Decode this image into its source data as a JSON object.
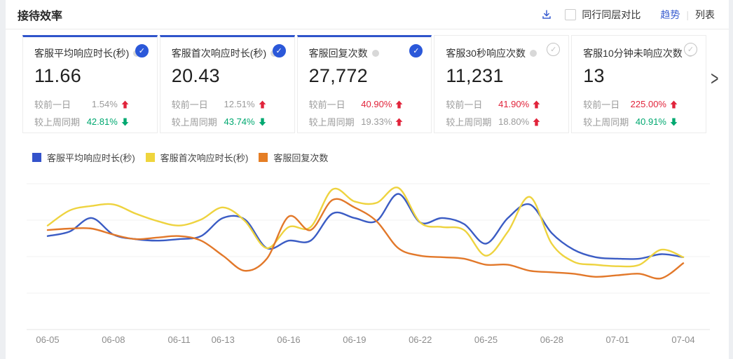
{
  "header": {
    "title": "接待效率",
    "compare_checkbox_label": "同行同层对比",
    "view_toggle": {
      "trend": "趋势",
      "divider": "|",
      "list": "列表",
      "active": "trend"
    }
  },
  "icons": {
    "check_glyph": "✓",
    "chevron_right_glyph": ">"
  },
  "colors": {
    "accent": "#3a5ed0",
    "card_selected_top": "#2f54cb",
    "up_arrow": "#e1243b",
    "down_arrow": "#00a870",
    "grid": "#f1f1f2",
    "axis": "#e4e4e6",
    "tick_label": "#8c8c8c"
  },
  "cards": [
    {
      "title": "客服平均响应时长(秒)",
      "value": "11.66",
      "selected": true,
      "rows": [
        {
          "label": "较前一日",
          "value": "1.54%",
          "value_color": "#9b9b9b",
          "direction": "up"
        },
        {
          "label": "较上周同期",
          "value": "42.81%",
          "value_color": "#00a870",
          "direction": "down"
        }
      ]
    },
    {
      "title": "客服首次响应时长(秒)",
      "value": "20.43",
      "selected": true,
      "rows": [
        {
          "label": "较前一日",
          "value": "12.51%",
          "value_color": "#9b9b9b",
          "direction": "up"
        },
        {
          "label": "较上周同期",
          "value": "43.74%",
          "value_color": "#00a870",
          "direction": "down"
        }
      ]
    },
    {
      "title": "客服回复次数",
      "value": "27,772",
      "selected": true,
      "rows": [
        {
          "label": "较前一日",
          "value": "40.90%",
          "value_color": "#e1243b",
          "direction": "up"
        },
        {
          "label": "较上周同期",
          "value": "19.33%",
          "value_color": "#9b9b9b",
          "direction": "up"
        }
      ]
    },
    {
      "title": "客服30秒响应次数",
      "value": "11,231",
      "selected": false,
      "rows": [
        {
          "label": "较前一日",
          "value": "41.90%",
          "value_color": "#e1243b",
          "direction": "up"
        },
        {
          "label": "较上周同期",
          "value": "18.80%",
          "value_color": "#9b9b9b",
          "direction": "up"
        }
      ]
    },
    {
      "title": "客服10分钟未响应次数",
      "value": "13",
      "selected": false,
      "rows": [
        {
          "label": "较前一日",
          "value": "225.00%",
          "value_color": "#e1243b",
          "direction": "up"
        },
        {
          "label": "较上周同期",
          "value": "40.91%",
          "value_color": "#00a870",
          "direction": "down"
        }
      ]
    }
  ],
  "legend": [
    {
      "label": "客服平均响应时长(秒)",
      "color": "#3453cb"
    },
    {
      "label": "客服首次响应时长(秒)",
      "color": "#efd53d"
    },
    {
      "label": "客服回复次数",
      "color": "#e57e25"
    }
  ],
  "chart_data": {
    "type": "line",
    "x": [
      "06-05",
      "06-06",
      "06-07",
      "06-08",
      "06-09",
      "06-10",
      "06-11",
      "06-12",
      "06-13",
      "06-14",
      "06-15",
      "06-16",
      "06-17",
      "06-18",
      "06-19",
      "06-20",
      "06-21",
      "06-22",
      "06-23",
      "06-24",
      "06-25",
      "06-26",
      "06-27",
      "06-28",
      "06-29",
      "06-30",
      "07-01",
      "07-02",
      "07-03",
      "07-04"
    ],
    "x_tick_labels": [
      "06-05",
      "06-08",
      "06-11",
      "06-13",
      "06-16",
      "06-19",
      "06-22",
      "06-25",
      "06-28",
      "07-01",
      "07-04"
    ],
    "x_tick_indices": [
      0,
      3,
      6,
      8,
      11,
      14,
      17,
      20,
      23,
      26,
      29
    ],
    "y_axis_labels_visible": false,
    "value_scale_note": "relative curve height 0-100 (no y-axis tick labels visible in screenshot)",
    "grid": "horizontal",
    "legend_position": "top-left",
    "series": [
      {
        "name": "客服平均响应时长(秒)",
        "color": "#3b5cc4",
        "values": [
          62,
          65,
          74,
          63,
          60,
          59,
          60,
          62,
          74,
          73,
          54,
          59,
          59,
          77,
          74,
          72,
          90,
          71,
          74,
          70,
          57,
          74,
          83,
          64,
          53,
          48,
          47,
          47,
          50,
          48
        ]
      },
      {
        "name": "客服首次响应时长(秒)",
        "color": "#eed33f",
        "values": [
          69,
          79,
          82,
          83,
          77,
          72,
          69,
          73,
          81,
          72,
          54,
          68,
          68,
          93,
          85,
          84,
          94,
          71,
          68,
          66,
          49,
          65,
          88,
          57,
          45,
          43,
          42,
          43,
          53,
          48
        ]
      },
      {
        "name": "客服回复次数",
        "color": "#e2782a",
        "values": [
          66,
          67,
          67,
          63,
          60,
          61,
          62,
          59,
          49,
          39,
          47,
          75,
          66,
          86,
          81,
          72,
          54,
          49,
          48,
          47,
          43,
          43,
          39,
          38,
          37,
          35,
          36,
          37,
          34,
          44
        ]
      }
    ]
  }
}
